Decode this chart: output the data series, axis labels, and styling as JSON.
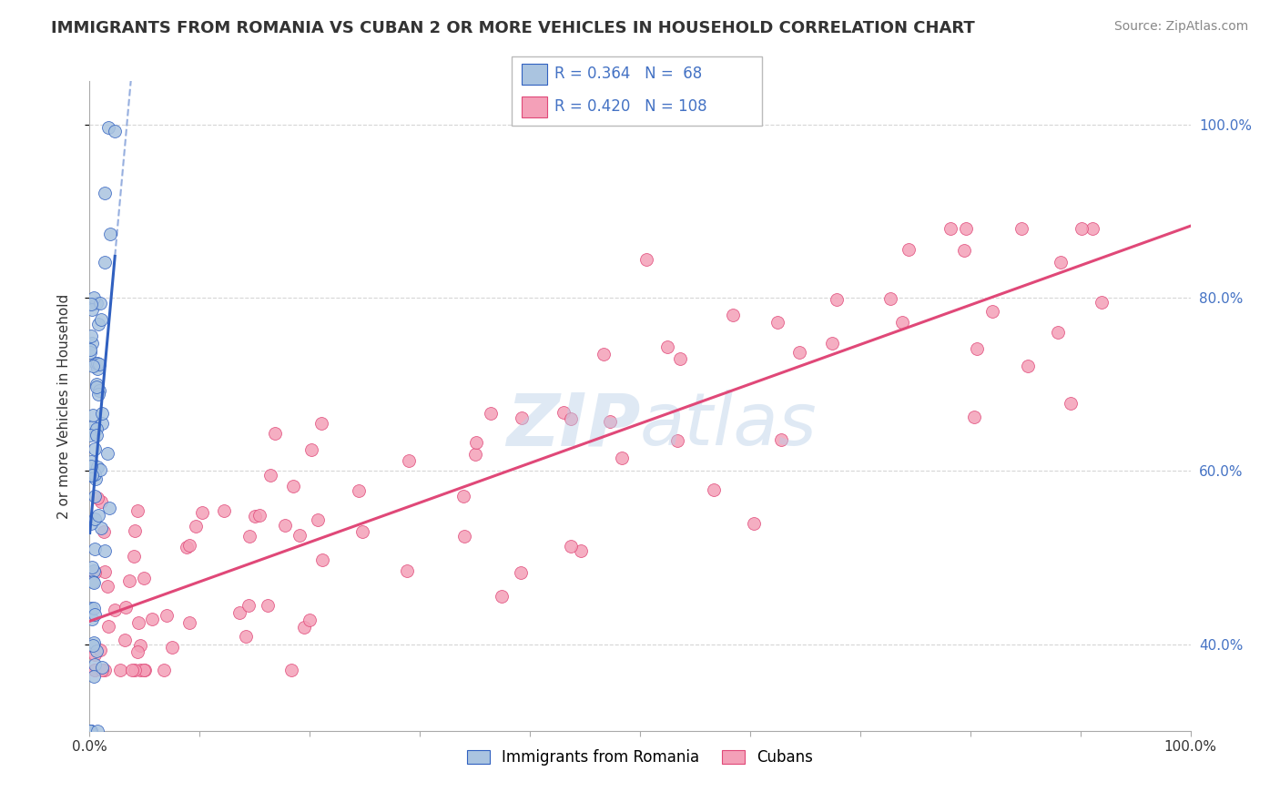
{
  "title": "IMMIGRANTS FROM ROMANIA VS CUBAN 2 OR MORE VEHICLES IN HOUSEHOLD CORRELATION CHART",
  "source": "Source: ZipAtlas.com",
  "xlabel_romania": "Immigrants from Romania",
  "xlabel_cubans": "Cubans",
  "ylabel": "2 or more Vehicles in Household",
  "xlim": [
    0.0,
    1.0
  ],
  "ylim": [
    0.3,
    1.05
  ],
  "romania_R": 0.364,
  "romania_N": 68,
  "cuban_R": 0.42,
  "cuban_N": 108,
  "romania_color": "#aac4e0",
  "cuban_color": "#f4a0b8",
  "romania_line_color": "#3060c0",
  "cuban_line_color": "#e04878",
  "background_color": "#ffffff",
  "grid_color": "#cccccc",
  "watermark_color": "#b8cfe8",
  "right_tick_color": "#4472c4",
  "x_ticks": [
    0.0,
    0.1,
    0.2,
    0.3,
    0.4,
    0.5,
    0.6,
    0.7,
    0.8,
    0.9,
    1.0
  ],
  "y_ticks": [
    0.4,
    0.6,
    0.8,
    1.0
  ],
  "title_fontsize": 13,
  "source_fontsize": 10,
  "tick_fontsize": 11,
  "ylabel_fontsize": 11
}
